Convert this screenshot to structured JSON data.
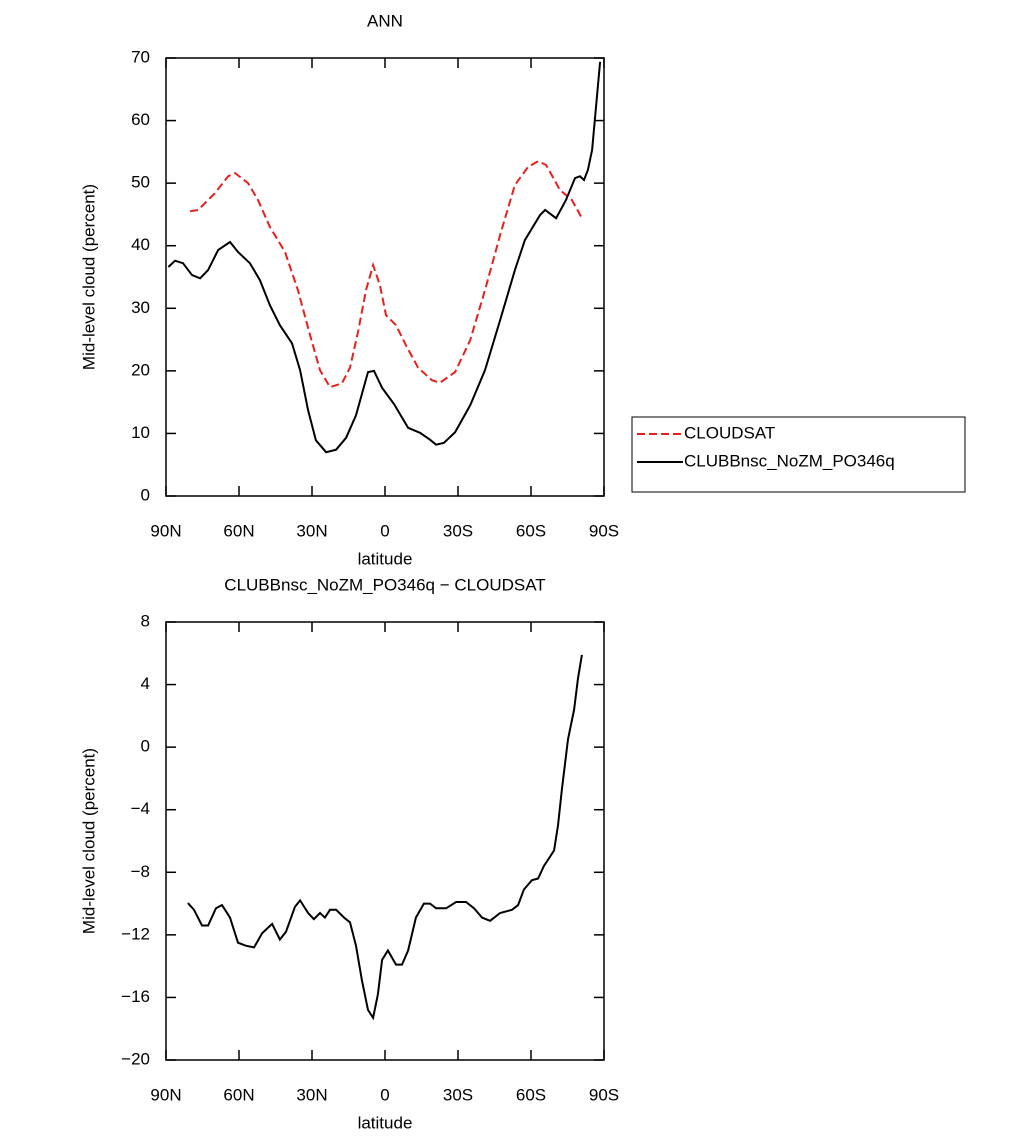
{
  "chart_data": [
    {
      "type": "line",
      "title": "ANN",
      "xlabel": "latitude",
      "ylabel": "Mid-level cloud (percent)",
      "xlim": [
        90,
        -90
      ],
      "xticks": [
        {
          "value": 90,
          "label": "90N"
        },
        {
          "value": 60,
          "label": "60N"
        },
        {
          "value": 30,
          "label": "30N"
        },
        0,
        {
          "value": -30,
          "label": "30S"
        },
        {
          "value": -60,
          "label": "60S"
        },
        {
          "value": -90,
          "label": "90S"
        }
      ],
      "ylim": [
        0,
        70
      ],
      "yticks": [
        0,
        10,
        20,
        30,
        40,
        50,
        60,
        70
      ],
      "legend": "right",
      "series": [
        {
          "name": "CLOUDSAT",
          "color": "#e8201c",
          "dash": true,
          "x": [
            80.1,
            76.8,
            69.9,
            64.5,
            61.6,
            56.3,
            52.2,
            47.3,
            41.1,
            35.8,
            30.8,
            26.7,
            22.6,
            17.7,
            14.4,
            11.1,
            7.8,
            4.9,
            2.1,
            -0.4,
            -4.5,
            -8.6,
            -13.6,
            -19.3,
            -22.6,
            -28.8,
            -35,
            -41.1,
            -47.3,
            -53.4,
            -58.8,
            -62.9,
            -66.2,
            -71.9,
            -76.8,
            -80.9
          ],
          "values": [
            45.5,
            45.7,
            48.4,
            51.1,
            51.6,
            50,
            47.3,
            43,
            39,
            32.9,
            25.7,
            20.1,
            17.4,
            18,
            20.5,
            26.2,
            32.9,
            36.9,
            33.7,
            28.9,
            27.3,
            24.1,
            20.5,
            18.5,
            18.1,
            19.8,
            24.9,
            32.9,
            41.7,
            49.7,
            52.6,
            53.5,
            52.9,
            48.9,
            47.3,
            44.4
          ]
        },
        {
          "name": "CLUBBnsc_NoZM_PO346q",
          "color": "#000000",
          "dash": false,
          "x": [
            89,
            86.3,
            83,
            79.3,
            76,
            72.7,
            68.6,
            63.7,
            60.4,
            55.5,
            51.4,
            47.3,
            43.2,
            38.2,
            34.9,
            31.6,
            28.4,
            24.2,
            20.1,
            16,
            11.9,
            7,
            4.5,
            1.2,
            -3.7,
            -9.5,
            -14.4,
            -18.5,
            -21,
            -24.2,
            -28.8,
            -35,
            -41.1,
            -47.3,
            -53.4,
            -57.5,
            -63.7,
            -65.8,
            -70.3,
            -74.4,
            -78.1,
            -80.1,
            -81.8,
            -83.4,
            -85.1,
            -88.4
          ],
          "values": [
            36.6,
            37.6,
            37.2,
            35.3,
            34.8,
            36.1,
            39.3,
            40.6,
            39,
            37.2,
            34.5,
            30.5,
            27.3,
            24.4,
            20.1,
            13.7,
            8.9,
            7,
            7.4,
            9.3,
            12.9,
            19.8,
            20,
            17.3,
            14.7,
            10.9,
            10.1,
            9,
            8.2,
            8.5,
            10.2,
            14.5,
            20.1,
            28.1,
            36.1,
            40.9,
            44.9,
            45.7,
            44.4,
            47.3,
            50.8,
            51.1,
            50.5,
            52.1,
            55.3,
            69.4
          ]
        }
      ]
    },
    {
      "type": "line",
      "title": "CLUBBnsc_NoZM_PO346q − CLOUDSAT",
      "xlabel": "latitude",
      "ylabel": "Mid-level cloud (percent)",
      "xlim": [
        90,
        -90
      ],
      "xticks": [
        {
          "value": 90,
          "label": "90N"
        },
        {
          "value": 60,
          "label": "60N"
        },
        {
          "value": 30,
          "label": "30N"
        },
        0,
        {
          "value": -30,
          "label": "30S"
        },
        {
          "value": -60,
          "label": "60S"
        },
        {
          "value": -90,
          "label": "90S"
        }
      ],
      "ylim": [
        -20,
        8
      ],
      "yticks": [
        {
          "value": -20,
          "label": "−20"
        },
        {
          "value": -16,
          "label": "−16"
        },
        {
          "value": -12,
          "label": "−12"
        },
        {
          "value": -8,
          "label": "−8"
        },
        {
          "value": -4,
          "label": "−4"
        },
        0,
        4,
        8
      ],
      "series": [
        {
          "color": "#000000",
          "dash": false,
          "x": [
            81,
            78.5,
            75.2,
            72.7,
            69.5,
            67,
            63.7,
            60.4,
            57.1,
            53.8,
            50.5,
            46.4,
            43.2,
            40.7,
            37,
            34.9,
            31.6,
            29.2,
            26.7,
            24.7,
            22.6,
            20.1,
            16.8,
            14.4,
            11.9,
            9.5,
            7,
            4.9,
            2.9,
            1.2,
            -1.2,
            -4.5,
            -7,
            -9.5,
            -12.7,
            -16,
            -18.5,
            -21,
            -25.1,
            -29.2,
            -33.3,
            -36.6,
            -39.9,
            -43.2,
            -47.3,
            -52.2,
            -54.7,
            -57.1,
            -60.4,
            -62.9,
            -65.3,
            -67,
            -69.5,
            -71.1,
            -72.7,
            -75.2,
            -77.7,
            -79.3,
            -80.9
          ],
          "values": [
            -9.97,
            -10.4,
            -11.4,
            -11.4,
            -10.3,
            -10.1,
            -10.9,
            -12.5,
            -12.7,
            -12.8,
            -11.9,
            -11.3,
            -12.3,
            -11.8,
            -10.2,
            -9.8,
            -10.6,
            -11,
            -10.6,
            -10.9,
            -10.4,
            -10.4,
            -10.9,
            -11.2,
            -12.7,
            -14.9,
            -16.8,
            -17.3,
            -15.8,
            -13.6,
            -13,
            -13.9,
            -13.9,
            -13,
            -10.9,
            -10,
            -10,
            -10.3,
            -10.3,
            -9.9,
            -9.9,
            -10.3,
            -10.9,
            -11.1,
            -10.6,
            -10.4,
            -10.1,
            -9.1,
            -8.5,
            -8.4,
            -7.6,
            -7.2,
            -6.6,
            -5,
            -2.7,
            0.5,
            2.4,
            4.4,
            5.9
          ]
        }
      ]
    }
  ]
}
